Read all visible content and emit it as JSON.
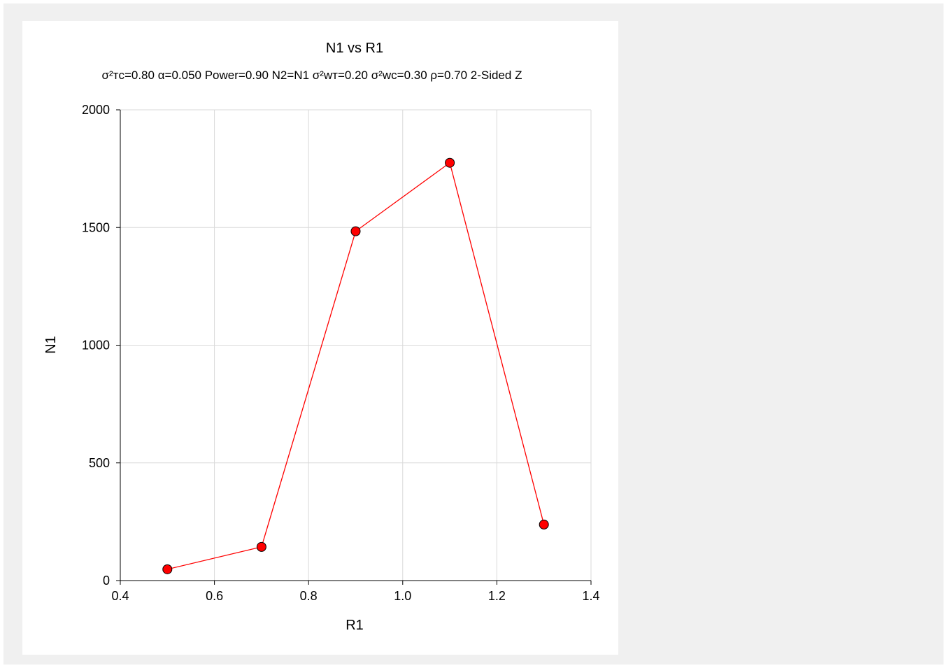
{
  "chart_data": {
    "type": "line",
    "title": "N1 vs R1",
    "subtitle": "σ²ᴛᴄ=0.80 α=0.050 Power=0.90 N2=N1 σ²wᴛ=0.20 σ²wᴄ=0.30 ρ=0.70 2-Sided Z",
    "xlabel": "R1",
    "ylabel": "N1",
    "xlim": [
      0.4,
      1.4
    ],
    "ylim": [
      0,
      2000
    ],
    "xticks": [
      "0.4",
      "0.6",
      "0.8",
      "1.0",
      "1.2",
      "1.4"
    ],
    "yticks": [
      "0",
      "500",
      "1000",
      "1500",
      "2000"
    ],
    "grid": true,
    "series": [
      {
        "x": [
          0.5,
          0.7,
          0.9,
          1.1,
          1.3
        ],
        "y": [
          48,
          143,
          1484,
          1775,
          238
        ]
      }
    ],
    "line_color": "#ff0000",
    "marker_color": "#ff0000"
  }
}
